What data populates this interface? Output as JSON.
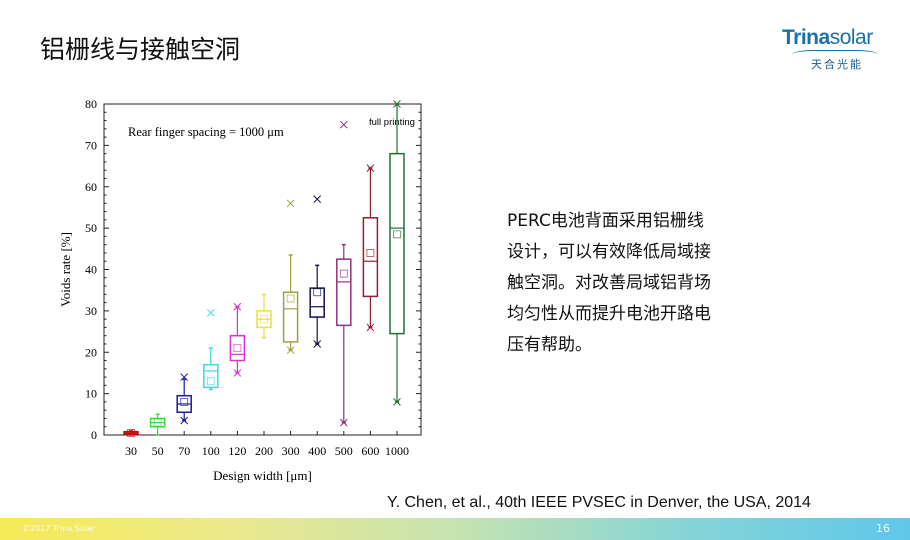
{
  "slide": {
    "title": "铝栅线与接触空洞",
    "page": "16",
    "copyright": "©2017 Trina Solar"
  },
  "logo": {
    "brand_bold": "Trina",
    "brand_light": "solar",
    "cn": "天合光能"
  },
  "description": [
    "PERC电池背面采用铝栅线",
    "设计，可以有效降低局域接",
    "触空洞。对改善局域铝背场",
    "均匀性从而提升电池开路电",
    "压有帮助。"
  ],
  "citation": "Y. Chen, et al., 40th IEEE PVSEC in Denver, the USA, 2014",
  "chart_data": {
    "type": "box",
    "xlabel": "Design width [μm]",
    "ylabel": "Voids rate [%]",
    "ylim": [
      0,
      80
    ],
    "yticks": [
      0,
      10,
      20,
      30,
      40,
      50,
      60,
      70,
      80
    ],
    "annotation": "Rear finger spacing = 1000 μm",
    "annotation2": "full printing",
    "categories": [
      "30",
      "50",
      "70",
      "100",
      "120",
      "200",
      "300",
      "400",
      "500",
      "600",
      "1000"
    ],
    "boxes": [
      {
        "min": 0,
        "q1": 0.2,
        "median": 0.5,
        "q3": 0.8,
        "max": 1,
        "mean": 0.5,
        "outliers": [],
        "color": "#c01010"
      },
      {
        "min": 0,
        "q1": 2,
        "median": 3,
        "q3": 4,
        "max": 5,
        "mean": 3,
        "outliers": [],
        "color": "#33dd33"
      },
      {
        "min": 3.5,
        "q1": 5.5,
        "median": 7.5,
        "q3": 9.5,
        "max": 13.5,
        "mean": 8,
        "outliers": [
          14,
          3.5
        ],
        "color": "#1a1aa0"
      },
      {
        "min": 11,
        "q1": 11.5,
        "median": 15.5,
        "q3": 17,
        "max": 21,
        "mean": 13,
        "outliers": [
          29.5
        ],
        "color": "#30e0e0"
      },
      {
        "min": 15,
        "q1": 18,
        "median": 19.5,
        "q3": 24,
        "max": 31,
        "mean": 21,
        "outliers": [
          15,
          31
        ],
        "color": "#e030d0"
      },
      {
        "min": 23.5,
        "q1": 26,
        "median": 28,
        "q3": 30,
        "max": 34,
        "mean": 28,
        "outliers": [],
        "color": "#e8e040"
      },
      {
        "min": 20.5,
        "q1": 22.5,
        "median": 30.5,
        "q3": 34.5,
        "max": 43.5,
        "mean": 33,
        "outliers": [
          56,
          20.5
        ],
        "color": "#a0a040"
      },
      {
        "min": 22,
        "q1": 28.5,
        "median": 31,
        "q3": 35.5,
        "max": 41,
        "mean": 34.5,
        "outliers": [
          57,
          22
        ],
        "color": "#101050"
      },
      {
        "min": 3,
        "q1": 26.5,
        "median": 37,
        "q3": 42.5,
        "max": 46,
        "mean": 39,
        "outliers": [
          75,
          3
        ],
        "color": "#903080"
      },
      {
        "min": 26,
        "q1": 33.5,
        "median": 42,
        "q3": 52.5,
        "max": 64.5,
        "mean": 44,
        "outliers": [
          64.5,
          26
        ],
        "color": "#902030"
      },
      {
        "min": 8,
        "q1": 24.5,
        "median": 50,
        "q3": 68,
        "max": 80,
        "mean": 48.5,
        "outliers": [
          8,
          80
        ],
        "color": "#207030"
      }
    ]
  }
}
